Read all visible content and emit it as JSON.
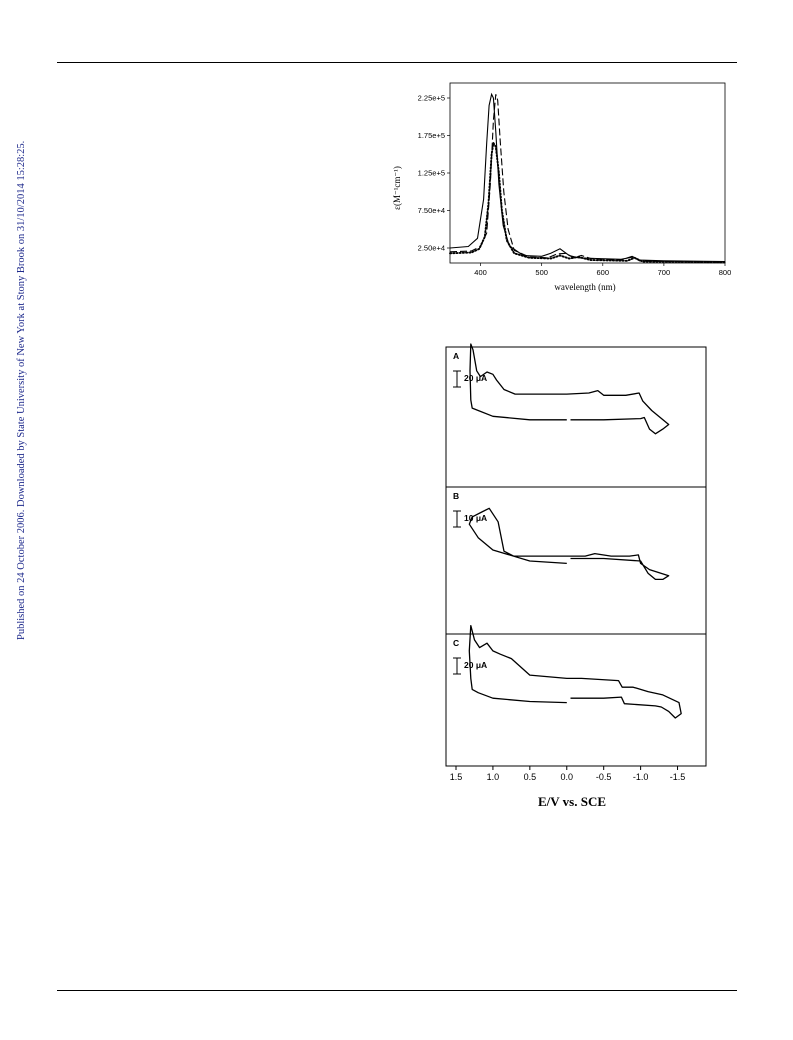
{
  "side_note": "Published on 24 October 2006. Downloaded by State University of New York at Stony Brook on 31/10/2014 15:28:25.",
  "chart_data": [
    {
      "type": "line",
      "xlabel": "wavelength (nm)",
      "ylabel": "ε(M⁻¹cm⁻¹)",
      "xlim": [
        350,
        800
      ],
      "ylim": [
        5000,
        245000
      ],
      "x_ticks": [
        "400",
        "500",
        "600",
        "700",
        "800"
      ],
      "y_ticks": [
        "2.50e+4",
        "7.50e+4",
        "1.25e+5",
        "1.75e+5",
        "2.25e+5"
      ],
      "series": [
        {
          "style": "solid",
          "points": [
            [
              350,
              25000
            ],
            [
              380,
              27000
            ],
            [
              395,
              38000
            ],
            [
              405,
              90000
            ],
            [
              410,
              165000
            ],
            [
              414,
              215000
            ],
            [
              418,
              230000
            ],
            [
              421,
              225000
            ],
            [
              425,
              180000
            ],
            [
              430,
              110000
            ],
            [
              437,
              55000
            ],
            [
              447,
              28000
            ],
            [
              470,
              15000
            ],
            [
              500,
              14000
            ],
            [
              515,
              18000
            ],
            [
              530,
              24000
            ],
            [
              545,
              15000
            ],
            [
              560,
              12000
            ],
            [
              590,
              11000
            ],
            [
              630,
              10000
            ],
            [
              650,
              13000
            ],
            [
              660,
              9000
            ],
            [
              700,
              8000
            ],
            [
              800,
              7000
            ]
          ]
        },
        {
          "style": "dashed",
          "points": [
            [
              350,
              20000
            ],
            [
              385,
              21000
            ],
            [
              400,
              27000
            ],
            [
              410,
              45000
            ],
            [
              416,
              110000
            ],
            [
              421,
              195000
            ],
            [
              425,
              230000
            ],
            [
              428,
              222000
            ],
            [
              432,
              170000
            ],
            [
              438,
              100000
            ],
            [
              445,
              50000
            ],
            [
              455,
              22000
            ],
            [
              480,
              13000
            ],
            [
              510,
              12000
            ],
            [
              525,
              17000
            ],
            [
              540,
              18000
            ],
            [
              552,
              12000
            ],
            [
              565,
              15000
            ],
            [
              580,
              11000
            ],
            [
              630,
              9000
            ],
            [
              648,
              14000
            ],
            [
              660,
              8000
            ],
            [
              700,
              7000
            ],
            [
              800,
              6000
            ]
          ]
        },
        {
          "style": "dotted",
          "points": [
            [
              350,
              18000
            ],
            [
              385,
              19000
            ],
            [
              398,
              24000
            ],
            [
              407,
              40000
            ],
            [
              413,
              85000
            ],
            [
              418,
              150000
            ],
            [
              421,
              165000
            ],
            [
              425,
              160000
            ],
            [
              430,
              125000
            ],
            [
              435,
              75000
            ],
            [
              443,
              35000
            ],
            [
              455,
              18000
            ],
            [
              480,
              12000
            ],
            [
              515,
              11000
            ],
            [
              530,
              15000
            ],
            [
              545,
              11000
            ],
            [
              560,
              13000
            ],
            [
              580,
              9000
            ],
            [
              640,
              8000
            ],
            [
              652,
              12000
            ],
            [
              665,
              7000
            ],
            [
              800,
              6000
            ]
          ]
        }
      ]
    },
    {
      "type": "line",
      "xlabel": "E/V vs. SCE",
      "x_ticks": [
        "1.5",
        "1.0",
        "0.5",
        "0.0",
        "-0.5",
        "-1.0",
        "-1.5"
      ],
      "xlim": [
        1.5,
        -1.75
      ],
      "panels": [
        {
          "label": "A",
          "scale": "20 μA",
          "series": [
            {
              "name": "",
              "points": [
                [
                  0.0,
                  -12
                ],
                [
                  0.5,
                  -12
                ],
                [
                  1.0,
                  -9
                ],
                [
                  1.2,
                  -4
                ],
                [
                  1.28,
                  -2
                ],
                [
                  1.3,
                  5
                ],
                [
                  1.31,
                  30
                ],
                [
                  1.3,
                  53
                ],
                [
                  1.27,
                  48
                ],
                [
                  1.22,
                  30
                ],
                [
                  1.17,
                  25
                ],
                [
                  1.08,
                  29
                ],
                [
                  1.0,
                  27
                ],
                [
                  0.95,
                  22
                ],
                [
                  0.85,
                  14
                ],
                [
                  0.7,
                  10
                ],
                [
                  0.3,
                  10
                ],
                [
                  0.0,
                  10
                ],
                [
                  -0.3,
                  11
                ],
                [
                  -0.42,
                  13
                ],
                [
                  -0.5,
                  9
                ],
                [
                  -0.8,
                  9
                ],
                [
                  -0.98,
                  11
                ],
                [
                  -1.03,
                  4
                ],
                [
                  -1.15,
                  -4
                ],
                [
                  -1.38,
                  -16
                ],
                [
                  -1.3,
                  -20
                ],
                [
                  -1.2,
                  -24
                ],
                [
                  -1.12,
                  -20
                ],
                [
                  -1.05,
                  -10
                ],
                [
                  -1.0,
                  -11
                ],
                [
                  -0.5,
                  -12
                ],
                [
                  -0.05,
                  -12
                ]
              ]
            }
          ]
        },
        {
          "label": "B",
          "scale": "10 μA",
          "series": [
            {
              "name": "",
              "points": [
                [
                  0.0,
                  -12
                ],
                [
                  0.5,
                  -10
                ],
                [
                  1.0,
                  -1
                ],
                [
                  1.2,
                  9
                ],
                [
                  1.32,
                  20
                ],
                [
                  1.28,
                  26
                ],
                [
                  1.15,
                  30
                ],
                [
                  1.05,
                  33
                ],
                [
                  0.93,
                  22
                ],
                [
                  0.85,
                  -2
                ],
                [
                  0.72,
                  -6
                ],
                [
                  0.5,
                  -6
                ],
                [
                  0.0,
                  -6
                ],
                [
                  -0.25,
                  -6
                ],
                [
                  -0.38,
                  -4
                ],
                [
                  -0.6,
                  -6
                ],
                [
                  -0.85,
                  -6
                ],
                [
                  -0.97,
                  -5
                ],
                [
                  -1.0,
                  -12
                ],
                [
                  -1.12,
                  -17
                ],
                [
                  -1.38,
                  -22
                ],
                [
                  -1.3,
                  -25
                ],
                [
                  -1.2,
                  -25
                ],
                [
                  -1.1,
                  -20
                ],
                [
                  -1.0,
                  -10
                ],
                [
                  -0.5,
                  -8
                ],
                [
                  -0.05,
                  -8
                ]
              ]
            }
          ]
        },
        {
          "label": "C",
          "scale": "20 μA",
          "series": [
            {
              "name": "",
              "points": [
                [
                  0.0,
                  -12
                ],
                [
                  0.5,
                  -11
                ],
                [
                  1.0,
                  -8
                ],
                [
                  1.2,
                  -3
                ],
                [
                  1.28,
                  0
                ],
                [
                  1.3,
                  10
                ],
                [
                  1.32,
                  35
                ],
                [
                  1.3,
                  58
                ],
                [
                  1.25,
                  45
                ],
                [
                  1.18,
                  38
                ],
                [
                  1.08,
                  42
                ],
                [
                  1.0,
                  35
                ],
                [
                  0.9,
                  32
                ],
                [
                  0.75,
                  28
                ],
                [
                  0.5,
                  13
                ],
                [
                  0.0,
                  10
                ],
                [
                  -0.2,
                  10
                ],
                [
                  -0.7,
                  8
                ],
                [
                  -0.75,
                  2
                ],
                [
                  -0.9,
                  2
                ],
                [
                  -1.1,
                  -2
                ],
                [
                  -1.3,
                  -5
                ],
                [
                  -1.52,
                  -12
                ],
                [
                  -1.55,
                  -22
                ],
                [
                  -1.47,
                  -26
                ],
                [
                  -1.38,
                  -20
                ],
                [
                  -1.28,
                  -16
                ],
                [
                  -1.2,
                  -15
                ],
                [
                  -0.78,
                  -13
                ],
                [
                  -0.74,
                  -7
                ],
                [
                  -0.5,
                  -8
                ],
                [
                  -0.05,
                  -8
                ]
              ]
            }
          ]
        }
      ]
    }
  ]
}
